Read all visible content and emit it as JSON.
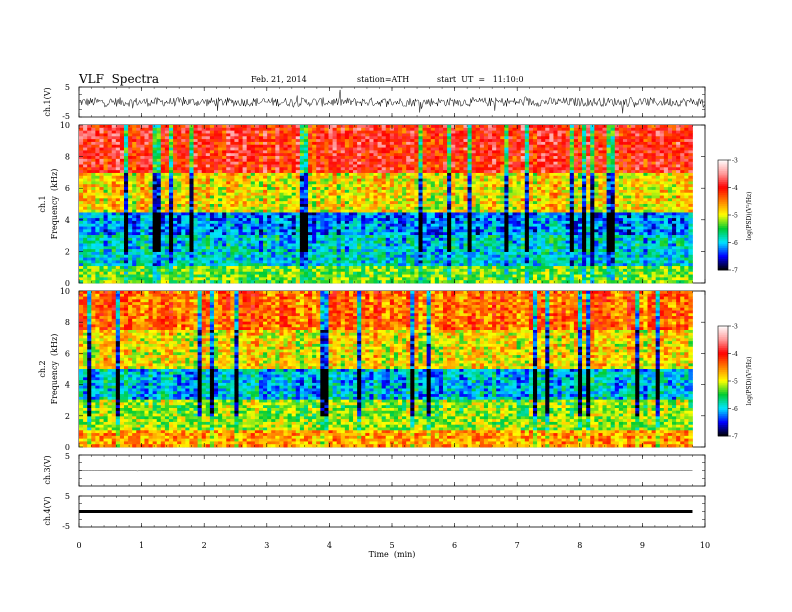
{
  "header": {
    "title": "VLF  Spectra",
    "date": "Feb. 21, 2014",
    "station": "station=ATH",
    "start": "start  UT  =   11:10:0"
  },
  "chart_data": [
    {
      "type": "line",
      "name": "ch1-waveform",
      "ylabel": "ch.1(V)",
      "ylim": [
        -5,
        5
      ],
      "yticks": [
        "5",
        "-5"
      ],
      "xlim": [
        0,
        10
      ],
      "baseline": 0,
      "approx_amplitude": 1.5
    },
    {
      "type": "heatmap",
      "name": "ch1-spectrogram",
      "ylabel_channel": "ch.1",
      "ylabel": "Frequency  (kHz)",
      "ylim": [
        0,
        10
      ],
      "yticks": [
        "0",
        "2",
        "4",
        "6",
        "8",
        "10"
      ],
      "xlim": [
        0,
        9.8
      ],
      "zlabel": "log(PSD)(V²/Hz)",
      "zlim": [
        -7,
        -3
      ],
      "colorbar_ticks": [
        "-3",
        "-4",
        "-5",
        "-6",
        "-7"
      ],
      "bands_khz_logpsd": [
        {
          "from": 0,
          "to": 1,
          "value": -5.3
        },
        {
          "from": 1,
          "to": 3,
          "value": -5.9
        },
        {
          "from": 3,
          "to": 4.5,
          "value": -6.2
        },
        {
          "from": 4.5,
          "to": 7,
          "value": -4.9
        },
        {
          "from": 7,
          "to": 10,
          "value": -4.0
        }
      ]
    },
    {
      "type": "heatmap",
      "name": "ch2-spectrogram",
      "ylabel_channel": "ch.2",
      "ylabel": "Frequency  (kHz)",
      "ylim": [
        0,
        10
      ],
      "yticks": [
        "0",
        "2",
        "4",
        "6",
        "8",
        "10"
      ],
      "xlim": [
        0,
        9.8
      ],
      "zlabel": "log(PSD)(V²/Hz)",
      "zlim": [
        -7,
        -3
      ],
      "colorbar_ticks": [
        "-3",
        "-4",
        "-5",
        "-6",
        "-7"
      ],
      "bands_khz_logpsd": [
        {
          "from": 0,
          "to": 1,
          "value": -4.6
        },
        {
          "from": 1,
          "to": 3,
          "value": -5.2
        },
        {
          "from": 3,
          "to": 5,
          "value": -6.0
        },
        {
          "from": 5,
          "to": 7.5,
          "value": -4.9
        },
        {
          "from": 7.5,
          "to": 10,
          "value": -4.4
        }
      ]
    },
    {
      "type": "line",
      "name": "ch3-waveform",
      "ylabel": "ch.3(V)",
      "ylim": [
        -5,
        5
      ],
      "yticks": [
        "5"
      ],
      "xlim": [
        0,
        9.8
      ],
      "baseline": 0,
      "approx_amplitude": 0.05
    },
    {
      "type": "line",
      "name": "ch4-waveform",
      "ylabel": "ch.4(V)",
      "ylim": [
        -5,
        5
      ],
      "yticks": [
        "5",
        "-5"
      ],
      "xlim": [
        0,
        9.8
      ],
      "baseline": 0,
      "approx_amplitude": 0.3
    },
    {
      "type": "axis",
      "name": "time-axis",
      "xlabel": "Time  (min)",
      "xlim": [
        0,
        10
      ],
      "xticks": [
        "0",
        "1",
        "2",
        "3",
        "4",
        "5",
        "6",
        "7",
        "8",
        "9",
        "10"
      ]
    }
  ],
  "colors": {
    "colormap": [
      "#000000",
      "#0000ff",
      "#00e5ff",
      "#00cc33",
      "#ffff00",
      "#ff8000",
      "#ff0000",
      "#ff9a9a",
      "#ffffff"
    ]
  }
}
